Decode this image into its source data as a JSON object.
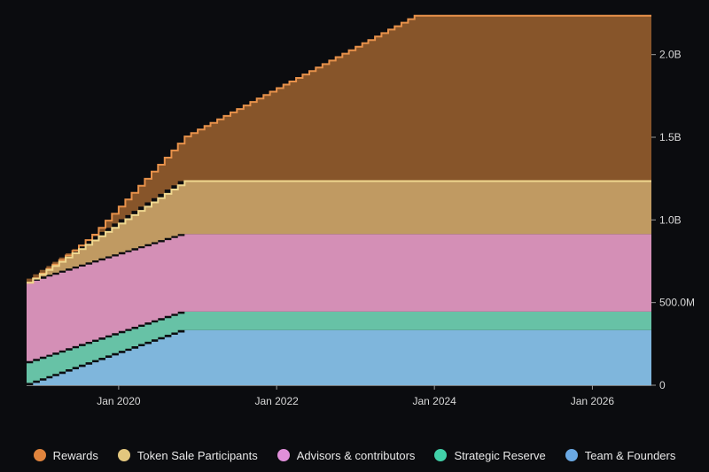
{
  "chart_data": {
    "type": "area",
    "stacked": true,
    "title": "",
    "xlabel": "",
    "ylabel": "",
    "x_range": [
      "2018-11-01",
      "2026-10-01"
    ],
    "ylim": [
      0,
      2250000000
    ],
    "y_ticks": [
      {
        "value": 0,
        "label": "0"
      },
      {
        "value": 500000000,
        "label": "500.0M"
      },
      {
        "value": 1000000000,
        "label": "1.0B"
      },
      {
        "value": 1500000000,
        "label": "1.5B"
      },
      {
        "value": 2000000000,
        "label": "2.0B"
      }
    ],
    "x_ticks": [
      {
        "date": "2020-01-01",
        "label": "Jan 2020"
      },
      {
        "date": "2022-01-01",
        "label": "Jan 2022"
      },
      {
        "date": "2024-01-01",
        "label": "Jan 2024"
      },
      {
        "date": "2026-01-01",
        "label": "Jan 2026"
      }
    ],
    "axis_position": "right",
    "grid": false,
    "legend_position": "bottom",
    "series": [
      {
        "name": "Team & Founders",
        "color": "#7fb6dc",
        "points": [
          [
            "2018-11-01",
            0
          ],
          [
            "2020-11-01",
            333000000
          ],
          [
            "2026-10-01",
            333000000
          ]
        ]
      },
      {
        "name": "Strategic Reserve",
        "color": "#67c2a6",
        "points": [
          [
            "2018-11-01",
            133000000
          ],
          [
            "2020-11-01",
            112000000
          ],
          [
            "2026-10-01",
            112000000
          ]
        ]
      },
      {
        "name": "Advisors & contributors",
        "color": "#d48fb6",
        "points": [
          [
            "2018-11-01",
            487000000
          ],
          [
            "2020-11-01",
            470000000
          ],
          [
            "2026-10-01",
            470000000
          ]
        ]
      },
      {
        "name": "Token Sale Participants",
        "color": "#c09a62",
        "points": [
          [
            "2018-11-01",
            0
          ],
          [
            "2020-11-01",
            320000000
          ],
          [
            "2026-10-01",
            320000000
          ]
        ]
      },
      {
        "name": "Rewards",
        "color": "#87552a",
        "points": [
          [
            "2018-11-01",
            0
          ],
          [
            "2019-06-01",
            15000000
          ],
          [
            "2019-09-01",
            35000000
          ],
          [
            "2020-11-01",
            270000000
          ],
          [
            "2023-10-01",
            1000000000
          ],
          [
            "2026-10-01",
            1000000000
          ]
        ]
      }
    ]
  },
  "legend": [
    {
      "label": "Rewards",
      "color": "#e0843d"
    },
    {
      "label": "Token Sale Participants",
      "color": "#e3c77e"
    },
    {
      "label": "Advisors & contributors",
      "color": "#e08fd9"
    },
    {
      "label": "Strategic Reserve",
      "color": "#41d0a8"
    },
    {
      "label": "Team & Founders",
      "color": "#6aa9e4"
    }
  ],
  "line_colors": {
    "Rewards": "#e8924b",
    "Token Sale Participants": "#f0d890"
  }
}
